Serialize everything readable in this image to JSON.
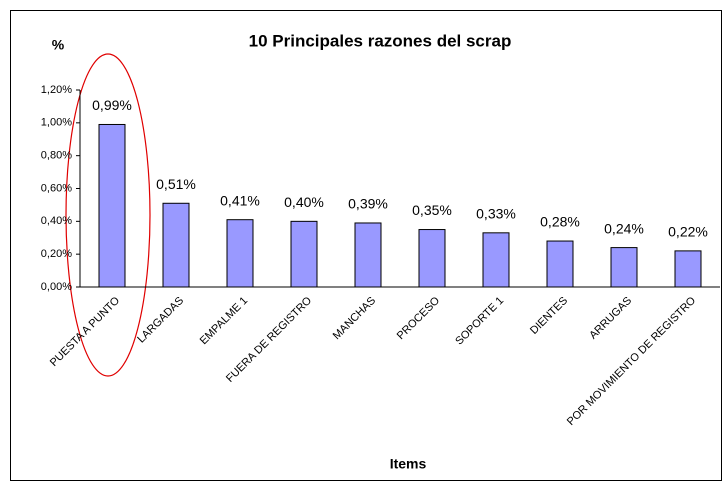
{
  "chart_data": {
    "type": "bar",
    "title": "10 Principales  razones del scrap",
    "y_label": "%",
    "x_label": "Items",
    "categories": [
      "PUESTA A PUNTO",
      "LARGADAS",
      "EMPALME 1",
      "FUERA DE REGISTRO",
      "MANCHAS",
      "PROCESO",
      "SOPORTE 1",
      "DIENTES",
      "ARRUGAS",
      "POR MOVIMIENTO DE REGISTRO"
    ],
    "values": [
      0.99,
      0.51,
      0.41,
      0.4,
      0.39,
      0.35,
      0.33,
      0.28,
      0.24,
      0.22
    ],
    "value_labels": [
      "0,99%",
      "0,51%",
      "0,41%",
      "0,40%",
      "0,39%",
      "0,35%",
      "0,33%",
      "0,28%",
      "0,24%",
      "0,22%"
    ],
    "color": "#9999ff",
    "ylim": [
      0,
      1.2
    ],
    "yticks": [
      {
        "value": 0,
        "label": "0,00%"
      },
      {
        "value": 0.2,
        "label": "0,20%"
      },
      {
        "value": 0.4,
        "label": "0,40%"
      },
      {
        "value": 0.6,
        "label": "0,60%"
      },
      {
        "value": 0.8,
        "label": "0,80%"
      },
      {
        "value": 1.0,
        "label": "1,00%"
      },
      {
        "value": 1.2,
        "label": "1,20%"
      }
    ],
    "grid": false
  }
}
